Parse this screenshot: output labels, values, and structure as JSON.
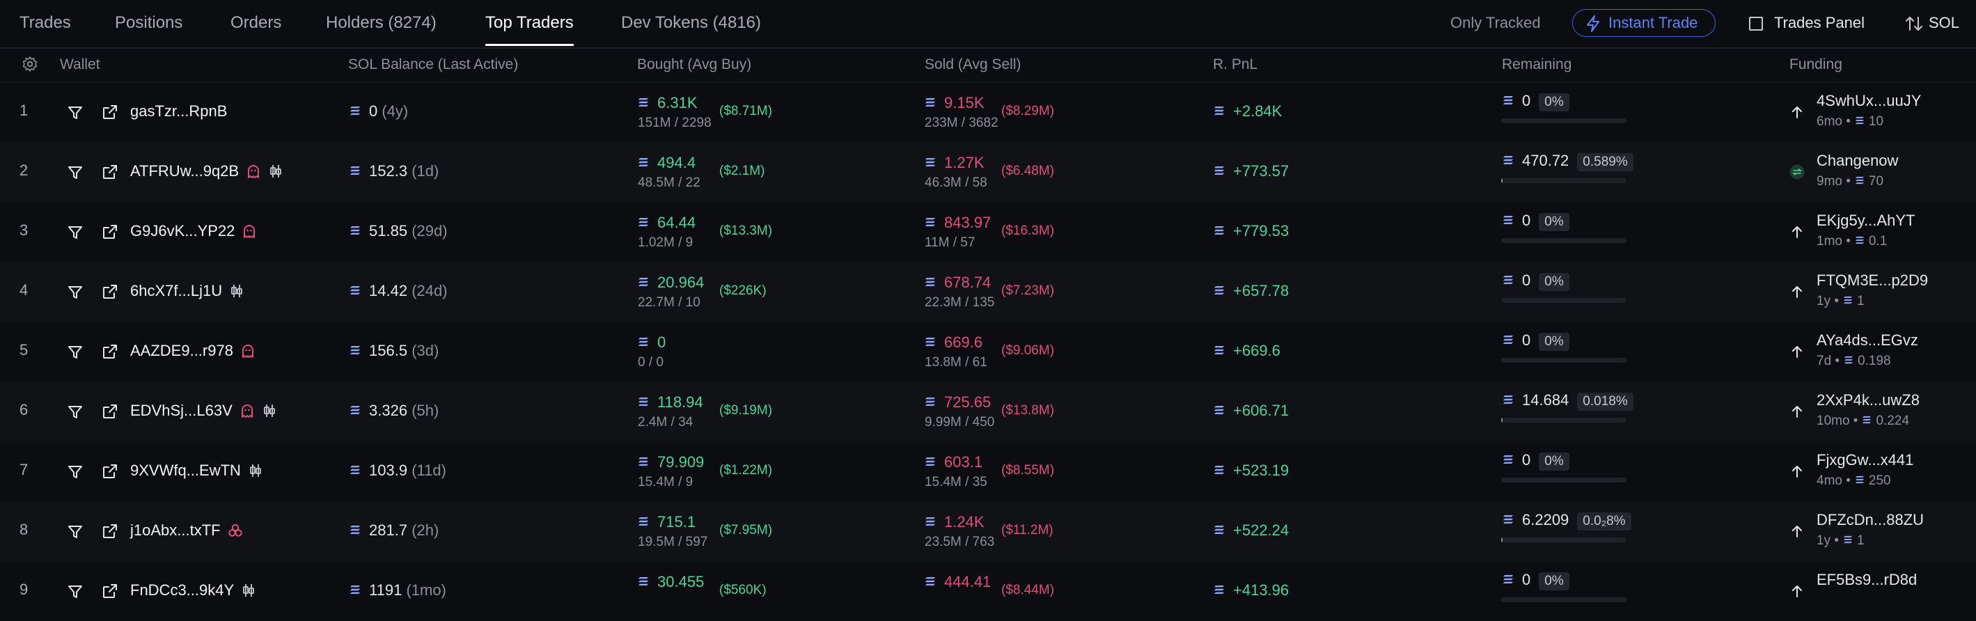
{
  "tabs": [
    "Trades",
    "Positions",
    "Orders",
    "Holders (8274)",
    "Top Traders",
    "Dev Tokens (4816)"
  ],
  "toolbar": {
    "only_tracked": "Only Tracked",
    "instant_trade": "Instant Trade",
    "trades_panel": "Trades Panel",
    "currency": "SOL"
  },
  "columns": {
    "wallet": "Wallet",
    "balance": "SOL Balance (Last Active)",
    "bought": "Bought (Avg Buy)",
    "sold": "Sold (Avg Sell)",
    "pnl": "R. PnL",
    "remaining": "Remaining",
    "funding": "Funding"
  },
  "colors": {
    "positive": "#4fd39a",
    "negative": "#e04f79",
    "accent": "#5b82ff",
    "badge": "#e04f79"
  },
  "icons": {
    "filter": "filter-icon",
    "link": "external-link-icon",
    "sol": "sol-icon",
    "funding": "arrow-up-icon",
    "settings": "gear-icon"
  },
  "rows": [
    {
      "rank": "1",
      "wallet": "gasTzr...RpnB",
      "badges": [],
      "balance": "0",
      "last_active": "(4y)",
      "bought": "6.31K",
      "bought_detail": "151M / 2298",
      "bought_usd": "($8.71M)",
      "sold": "9.15K",
      "sold_detail": "233M / 3682",
      "sold_usd": "($8.29M)",
      "pnl": "+2.84K",
      "remaining": "0",
      "remaining_pct": "0%",
      "remaining_fill": 0,
      "funding_name": "4SwhUx...uuJY",
      "funding_age": "6mo",
      "funding_amount": "10",
      "funding_icon": "arrow-up-icon"
    },
    {
      "rank": "2",
      "wallet": "ATFRUw...9q2B",
      "badges": [
        "ghost-icon",
        "candles-icon"
      ],
      "balance": "152.3",
      "last_active": "(1d)",
      "bought": "494.4",
      "bought_detail": "48.5M / 22",
      "bought_usd": "($2.1M)",
      "sold": "1.27K",
      "sold_detail": "46.3M / 58",
      "sold_usd": "($6.48M)",
      "pnl": "+773.57",
      "remaining": "470.72",
      "remaining_pct": "0.589%",
      "remaining_fill": 0.00589,
      "funding_name": "Changenow",
      "funding_age": "9mo",
      "funding_amount": "70",
      "funding_icon": "exchange-logo-icon"
    },
    {
      "rank": "3",
      "wallet": "G9J6vK...YP22",
      "badges": [
        "ghost-icon"
      ],
      "balance": "51.85",
      "last_active": "(29d)",
      "bought": "64.44",
      "bought_detail": "1.02M / 9",
      "bought_usd": "($13.3M)",
      "sold": "843.97",
      "sold_detail": "11M / 57",
      "sold_usd": "($16.3M)",
      "pnl": "+779.53",
      "remaining": "0",
      "remaining_pct": "0%",
      "remaining_fill": 0,
      "funding_name": "EKjg5y...AhYT",
      "funding_age": "1mo",
      "funding_amount": "0.1",
      "funding_icon": "arrow-up-icon"
    },
    {
      "rank": "4",
      "wallet": "6hcX7f...Lj1U",
      "badges": [
        "candles-icon"
      ],
      "balance": "14.42",
      "last_active": "(24d)",
      "bought": "20.964",
      "bought_detail": "22.7M / 10",
      "bought_usd": "($226K)",
      "sold": "678.74",
      "sold_detail": "22.3M / 135",
      "sold_usd": "($7.23M)",
      "pnl": "+657.78",
      "remaining": "0",
      "remaining_pct": "0%",
      "remaining_fill": 0,
      "funding_name": "FTQM3E...p2D9",
      "funding_age": "1y",
      "funding_amount": "1",
      "funding_icon": "arrow-up-icon"
    },
    {
      "rank": "5",
      "wallet": "AAZDE9...r978",
      "badges": [
        "ghost-icon"
      ],
      "balance": "156.5",
      "last_active": "(3d)",
      "bought": "0",
      "bought_detail": "0 / 0",
      "bought_usd": "",
      "sold": "669.6",
      "sold_detail": "13.8M / 61",
      "sold_usd": "($9.06M)",
      "pnl": "+669.6",
      "remaining": "0",
      "remaining_pct": "0%",
      "remaining_fill": 0,
      "funding_name": "AYa4ds...EGvz",
      "funding_age": "7d",
      "funding_amount": "0.198",
      "funding_icon": "arrow-up-icon"
    },
    {
      "rank": "6",
      "wallet": "EDVhSj...L63V",
      "badges": [
        "ghost-icon",
        "candles-icon"
      ],
      "balance": "3.326",
      "last_active": "(5h)",
      "bought": "118.94",
      "bought_detail": "2.4M / 34",
      "bought_usd": "($9.19M)",
      "sold": "725.65",
      "sold_detail": "9.99M / 450",
      "sold_usd": "($13.8M)",
      "pnl": "+606.71",
      "remaining": "14.684",
      "remaining_pct": "0.018%",
      "remaining_fill": 0.00018,
      "funding_name": "2XxP4k...uwZ8",
      "funding_age": "10mo",
      "funding_amount": "0.224",
      "funding_icon": "arrow-up-icon"
    },
    {
      "rank": "7",
      "wallet": "9XVWfq...EwTN",
      "badges": [
        "candles-icon"
      ],
      "balance": "103.9",
      "last_active": "(11d)",
      "bought": "79.909",
      "bought_detail": "15.4M / 9",
      "bought_usd": "($1.22M)",
      "sold": "603.1",
      "sold_detail": "15.4M / 35",
      "sold_usd": "($8.55M)",
      "pnl": "+523.19",
      "remaining": "0",
      "remaining_pct": "0%",
      "remaining_fill": 0,
      "funding_name": "FjxgGw...x441",
      "funding_age": "4mo",
      "funding_amount": "250",
      "funding_icon": "arrow-up-icon"
    },
    {
      "rank": "8",
      "wallet": "j1oAbx...txTF",
      "badges": [
        "biohazard-icon"
      ],
      "balance": "281.7",
      "last_active": "(2h)",
      "bought": "715.1",
      "bought_detail": "19.5M / 597",
      "bought_usd": "($7.95M)",
      "sold": "1.24K",
      "sold_detail": "23.5M / 763",
      "sold_usd": "($11.2M)",
      "pnl": "+522.24",
      "remaining": "6.2209",
      "remaining_pct": "0.0₂8%",
      "remaining_fill": 8e-05,
      "funding_name": "DFZcDn...88ZU",
      "funding_age": "1y",
      "funding_amount": "1",
      "funding_icon": "arrow-up-icon"
    },
    {
      "rank": "9",
      "wallet": "FnDCc3...9k4Y",
      "badges": [
        "candles-icon"
      ],
      "balance": "1191",
      "last_active": "(1mo)",
      "bought": "30.455",
      "bought_detail": "",
      "bought_usd": "($560K)",
      "sold": "444.41",
      "sold_detail": "",
      "sold_usd": "($8.44M)",
      "pnl": "+413.96",
      "remaining": "0",
      "remaining_pct": "0%",
      "remaining_fill": 0,
      "funding_name": "EF5Bs9...rD8d",
      "funding_age": "",
      "funding_amount": "",
      "funding_icon": "arrow-up-icon"
    }
  ]
}
